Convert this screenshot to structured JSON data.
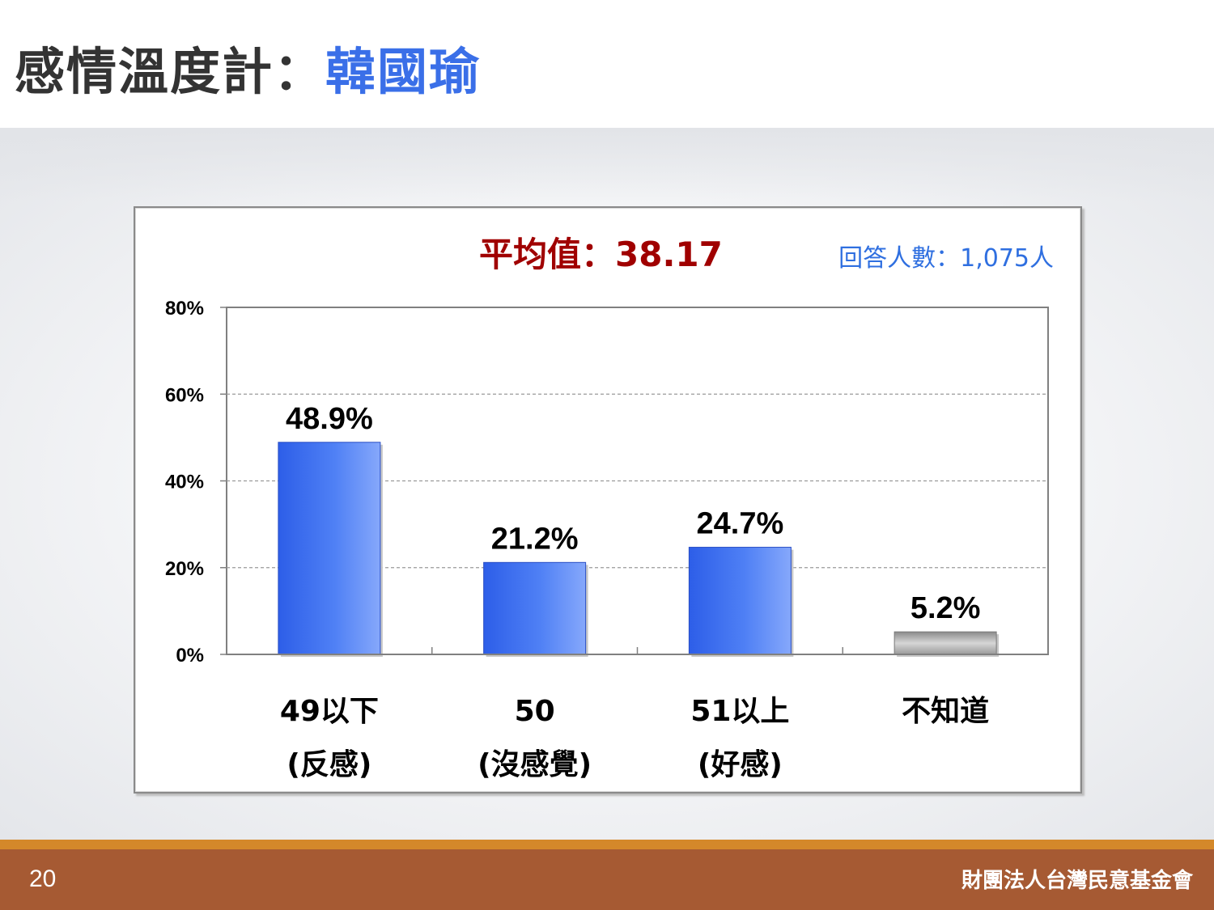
{
  "slide": {
    "title_prefix": "感情溫度計：",
    "title_name": "韓國瑜",
    "page_number": "20",
    "organization": "財團法人台灣民意基金會"
  },
  "colors": {
    "title_text": "#333333",
    "title_accent": "#3a6fe8",
    "bar_blue": "#3d6cf0",
    "bar_gray": "#9a9a9a",
    "mean_text": "#a00000",
    "n_text": "#2f6fe0",
    "footer_band": "#a65a33",
    "footer_stripe": "#d4882a"
  },
  "chart_data": {
    "type": "bar",
    "title": "平均值：38.17",
    "subtitle": "回答人數：1,075人",
    "xlabel": "",
    "ylabel": "",
    "ylim": [
      0,
      80
    ],
    "yticks": [
      0,
      20,
      40,
      60,
      80
    ],
    "yticklabels": [
      "0%",
      "20%",
      "40%",
      "60%",
      "80%"
    ],
    "grid": true,
    "legend": "none",
    "categories": [
      [
        "49以下",
        "(反感)"
      ],
      [
        "50",
        "(沒感覺)"
      ],
      [
        "51以上",
        "(好感)"
      ],
      [
        "不知道"
      ]
    ],
    "values": [
      48.9,
      21.2,
      24.7,
      5.2
    ],
    "value_labels": [
      "48.9%",
      "21.2%",
      "24.7%",
      "5.2%"
    ],
    "bar_styles": [
      "blue",
      "blue",
      "blue",
      "gray"
    ]
  }
}
